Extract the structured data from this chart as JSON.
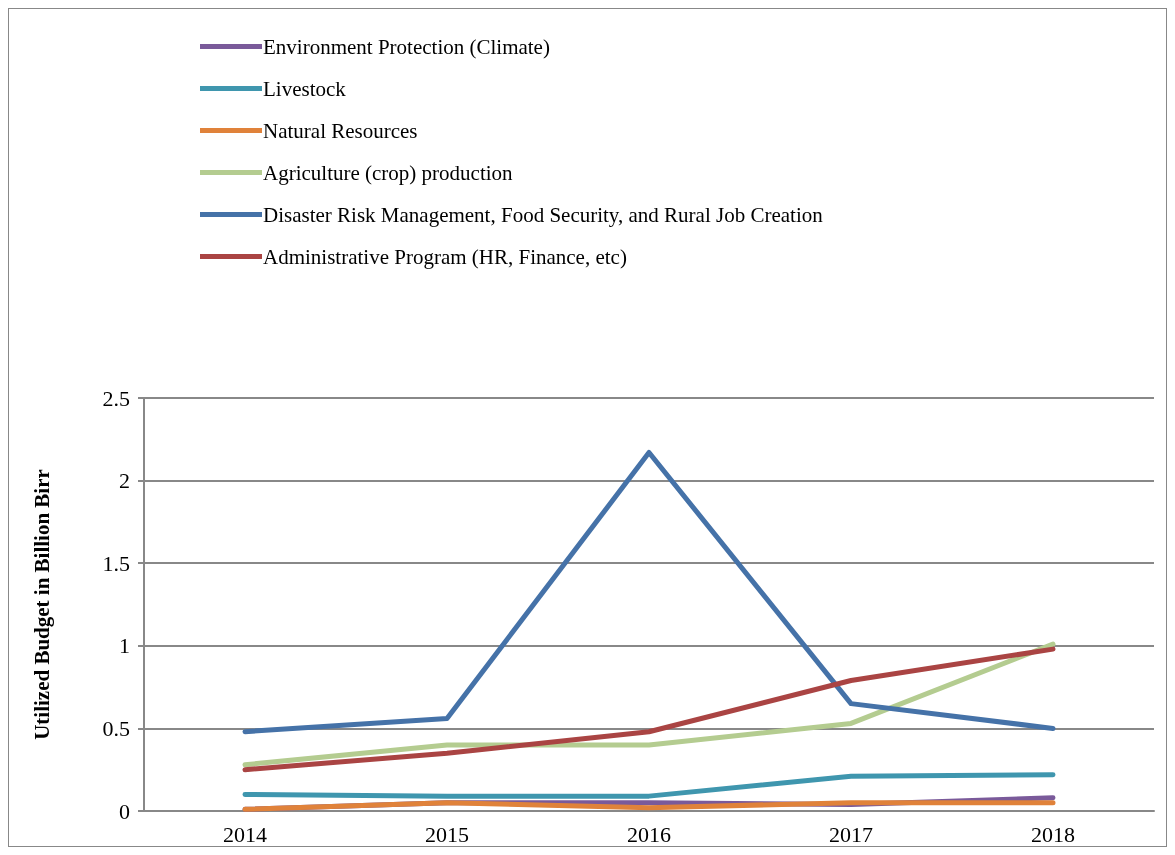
{
  "chart_data": {
    "type": "line",
    "ylabel": "Utilized Budget in Billion Birr",
    "categories": [
      "2014",
      "2015",
      "2016",
      "2017",
      "2018"
    ],
    "series": [
      {
        "name": "Environment Protection (Climate)",
        "color": "#7a5a9a",
        "values": [
          0.01,
          0.05,
          0.05,
          0.04,
          0.08
        ]
      },
      {
        "name": "Livestock",
        "color": "#3f96ae",
        "values": [
          0.1,
          0.09,
          0.09,
          0.21,
          0.22
        ]
      },
      {
        "name": "Natural Resources",
        "color": "#e0823a",
        "values": [
          0.01,
          0.05,
          0.02,
          0.05,
          0.05
        ]
      },
      {
        "name": "Agriculture (crop) production",
        "color": "#b4cc90",
        "values": [
          0.28,
          0.4,
          0.4,
          0.53,
          1.01
        ]
      },
      {
        "name": "Disaster Risk Management, Food Security, and Rural Job Creation",
        "color": "#4572a8",
        "values": [
          0.48,
          0.56,
          2.17,
          0.65,
          0.5
        ]
      },
      {
        "name": "Administrative Program (HR, Finance, etc)",
        "color": "#aa4443",
        "values": [
          0.25,
          0.35,
          0.48,
          0.79,
          0.98
        ]
      }
    ],
    "ylim": [
      0,
      2.5
    ],
    "yticks": [
      0,
      0.5,
      1,
      1.5,
      2,
      2.5
    ],
    "grid": "y",
    "legend": "top left",
    "marker": "none",
    "line_style": "solid"
  }
}
